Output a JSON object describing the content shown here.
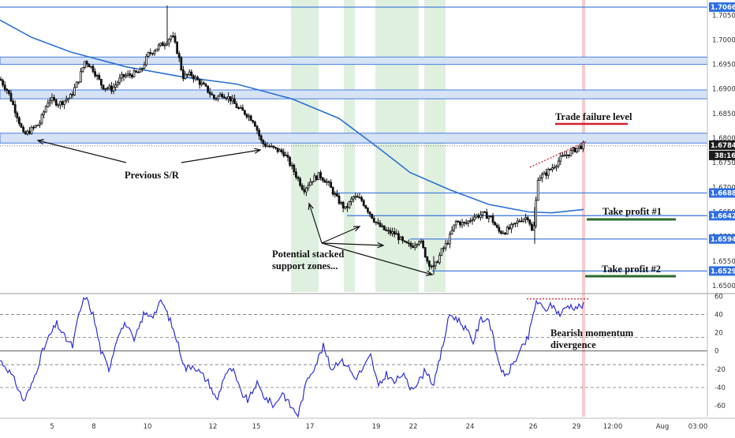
{
  "chart_data": [
    {
      "type": "candlestick",
      "title": "",
      "price_range": [
        1.6487,
        1.7081
      ],
      "ticks": [
        "1.70500",
        "1.70000",
        "1.69500",
        "1.69000",
        "1.68500",
        "1.68000",
        "1.67500",
        "1.67000",
        "1.66500",
        "1.66000",
        "1.65500",
        "1.65000"
      ],
      "tick_values": [
        1.705,
        1.7,
        1.695,
        1.69,
        1.685,
        1.68,
        1.675,
        1.67,
        1.665,
        1.66,
        1.655,
        1.65
      ],
      "current_price": "1.67842",
      "countdown": "38:16",
      "level_lines": [
        {
          "value": 1.70665,
          "label": "1.70665"
        },
        {
          "value": 1.66885,
          "label": "1.66885"
        },
        {
          "value": 1.66422,
          "label": "1.66422"
        },
        {
          "value": 1.65948,
          "label": "1.65948"
        },
        {
          "value": 1.65297,
          "label": "1.65297"
        }
      ],
      "sr_zones": [
        [
          1.695,
          1.6965
        ],
        [
          1.688,
          1.6898
        ],
        [
          1.679,
          1.681
        ]
      ],
      "ma_line": [
        [
          0,
          1.704
        ],
        [
          40,
          1.7005
        ],
        [
          90,
          1.6975
        ],
        [
          160,
          1.6945
        ],
        [
          230,
          1.6925
        ],
        [
          300,
          1.691
        ],
        [
          370,
          1.688
        ],
        [
          430,
          1.684
        ],
        [
          480,
          1.678
        ],
        [
          520,
          1.673
        ],
        [
          570,
          1.6695
        ],
        [
          620,
          1.6665
        ],
        [
          670,
          1.665
        ],
        [
          700,
          1.6648
        ],
        [
          740,
          1.6655
        ]
      ],
      "candle_path": [
        [
          0,
          1.692
        ],
        [
          10,
          1.6895
        ],
        [
          22,
          1.6845
        ],
        [
          30,
          1.6805
        ],
        [
          42,
          1.682
        ],
        [
          50,
          1.683
        ],
        [
          62,
          1.688
        ],
        [
          75,
          1.687
        ],
        [
          90,
          1.6885
        ],
        [
          100,
          1.692
        ],
        [
          108,
          1.6958
        ],
        [
          118,
          1.694
        ],
        [
          130,
          1.6905
        ],
        [
          142,
          1.69
        ],
        [
          155,
          1.6925
        ],
        [
          168,
          1.693
        ],
        [
          178,
          1.6935
        ],
        [
          188,
          1.697
        ],
        [
          200,
          1.6985
        ],
        [
          210,
          1.6995
        ],
        [
          218,
          1.701
        ],
        [
          226,
          1.697
        ],
        [
          232,
          1.6925
        ],
        [
          242,
          1.693
        ],
        [
          252,
          1.6915
        ],
        [
          262,
          1.69
        ],
        [
          272,
          1.688
        ],
        [
          282,
          1.689
        ],
        [
          292,
          1.688
        ],
        [
          302,
          1.686
        ],
        [
          312,
          1.685
        ],
        [
          322,
          1.6835
        ],
        [
          332,
          1.679
        ],
        [
          345,
          1.678
        ],
        [
          360,
          1.677
        ],
        [
          372,
          1.6735
        ],
        [
          385,
          1.6695
        ],
        [
          395,
          1.6715
        ],
        [
          405,
          1.6725
        ],
        [
          415,
          1.671
        ],
        [
          428,
          1.6675
        ],
        [
          438,
          1.6655
        ],
        [
          448,
          1.668
        ],
        [
          458,
          1.6675
        ],
        [
          468,
          1.665
        ],
        [
          478,
          1.6625
        ],
        [
          490,
          1.661
        ],
        [
          502,
          1.6605
        ],
        [
          512,
          1.6585
        ],
        [
          522,
          1.658
        ],
        [
          532,
          1.6595
        ],
        [
          542,
          1.655
        ],
        [
          550,
          1.6535
        ],
        [
          560,
          1.657
        ],
        [
          568,
          1.659
        ],
        [
          578,
          1.663
        ],
        [
          590,
          1.6625
        ],
        [
          600,
          1.664
        ],
        [
          612,
          1.6645
        ],
        [
          622,
          1.664
        ],
        [
          632,
          1.661
        ],
        [
          640,
          1.661
        ],
        [
          650,
          1.662
        ],
        [
          660,
          1.6635
        ],
        [
          670,
          1.664
        ],
        [
          676,
          1.66
        ],
        [
          682,
          1.672
        ],
        [
          690,
          1.6725
        ],
        [
          700,
          1.674
        ],
        [
          712,
          1.676
        ],
        [
          722,
          1.677
        ],
        [
          732,
          1.678
        ],
        [
          742,
          1.6788
        ]
      ],
      "wicks": [
        [
          212,
          1.707,
          1.6995
        ],
        [
          678,
          1.6585,
          1.666
        ],
        [
          550,
          1.6522,
          1.656
        ]
      ],
      "green_bands": [
        [
          369,
          404
        ],
        [
          436,
          450
        ],
        [
          476,
          531
        ],
        [
          538,
          565
        ]
      ],
      "red_band": [
        738,
        742
      ],
      "annotations": {
        "previous_sr": "Previous S/R",
        "stacked": [
          "Potential stacked",
          "support zones..."
        ],
        "trade_failure": "Trade failure level",
        "tp1": "Take profit #1",
        "tp2": "Take profit #2"
      }
    },
    {
      "type": "line",
      "title": "",
      "y_range": [
        -72,
        62
      ],
      "ticks": [
        "60",
        "40",
        "20",
        "0",
        "-20",
        "-40",
        "-60"
      ],
      "tick_values": [
        60,
        40,
        20,
        0,
        -20,
        -40,
        -60
      ],
      "dashed_levels": [
        40,
        15,
        -15,
        -40
      ],
      "solid_levels": [
        0
      ],
      "series": [
        {
          "color": "#2d2fd6",
          "points": [
            [
              0,
              -10
            ],
            [
              10,
              -20
            ],
            [
              20,
              -35
            ],
            [
              30,
              -55
            ],
            [
              40,
              -38
            ],
            [
              52,
              -5
            ],
            [
              62,
              15
            ],
            [
              72,
              30
            ],
            [
              82,
              15
            ],
            [
              92,
              5
            ],
            [
              100,
              40
            ],
            [
              108,
              60
            ],
            [
              118,
              40
            ],
            [
              128,
              0
            ],
            [
              138,
              -20
            ],
            [
              150,
              20
            ],
            [
              160,
              30
            ],
            [
              170,
              10
            ],
            [
              182,
              40
            ],
            [
              195,
              40
            ],
            [
              205,
              55
            ],
            [
              215,
              35
            ],
            [
              225,
              10
            ],
            [
              235,
              -20
            ],
            [
              245,
              -15
            ],
            [
              255,
              -25
            ],
            [
              265,
              -35
            ],
            [
              275,
              -55
            ],
            [
              285,
              -25
            ],
            [
              295,
              -20
            ],
            [
              305,
              -45
            ],
            [
              315,
              -55
            ],
            [
              325,
              -35
            ],
            [
              335,
              -50
            ],
            [
              348,
              -60
            ],
            [
              358,
              -45
            ],
            [
              368,
              -60
            ],
            [
              378,
              -70
            ],
            [
              390,
              -30
            ],
            [
              400,
              -15
            ],
            [
              410,
              5
            ],
            [
              420,
              -20
            ],
            [
              430,
              -10
            ],
            [
              440,
              -15
            ],
            [
              450,
              -30
            ],
            [
              460,
              -20
            ],
            [
              470,
              -5
            ],
            [
              480,
              -40
            ],
            [
              490,
              -25
            ],
            [
              500,
              -35
            ],
            [
              510,
              -25
            ],
            [
              520,
              -40
            ],
            [
              530,
              -35
            ],
            [
              540,
              -20
            ],
            [
              550,
              -38
            ],
            [
              560,
              0
            ],
            [
              570,
              40
            ],
            [
              580,
              35
            ],
            [
              590,
              25
            ],
            [
              600,
              10
            ],
            [
              610,
              35
            ],
            [
              620,
              35
            ],
            [
              630,
              -5
            ],
            [
              640,
              -30
            ],
            [
              650,
              -15
            ],
            [
              660,
              0
            ],
            [
              670,
              15
            ],
            [
              680,
              55
            ],
            [
              690,
              45
            ],
            [
              700,
              50
            ],
            [
              710,
              40
            ],
            [
              720,
              50
            ],
            [
              730,
              48
            ],
            [
              740,
              50
            ]
          ]
        }
      ],
      "divergence_label": [
        "Bearish momentum",
        "divergence"
      ]
    }
  ],
  "x_axis": {
    "labels": [
      "5",
      "8",
      "10",
      "12",
      "15",
      "17",
      "19",
      "22",
      "24",
      "26",
      "29",
      "12:00",
      "Aug",
      "03:00"
    ]
  },
  "colors": {
    "level_line": "#4a7fdc",
    "zone_fill": "#d6e2f5",
    "green_band": "#dff0df",
    "red_band": "#f6cccc",
    "ma": "#2a6fd6",
    "candle": "#111111",
    "oscillator": "#2d2fd6",
    "tp_underline": "#2e6b2e",
    "fail_underline": "#d21f2f",
    "divergence_dots": "#d21f2f",
    "price_tag_bg": "#1c1c1c"
  }
}
